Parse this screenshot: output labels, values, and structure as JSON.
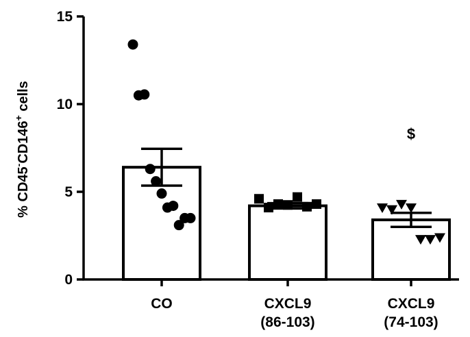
{
  "chart_data": {
    "type": "bar",
    "ylabel": {
      "prefix": "% CD45",
      "sup1": "-",
      "mid": "CD146",
      "sup2": "+",
      "suffix": " cells"
    },
    "ylim": [
      0,
      15
    ],
    "yticks": [
      0,
      5,
      10,
      15
    ],
    "grid": false,
    "error_bars": "mean ± SEM",
    "categories": [
      {
        "lines": [
          "CO"
        ]
      },
      {
        "lines": [
          "CXCL9",
          "(86-103)"
        ]
      },
      {
        "lines": [
          "CXCL9",
          "(74-103)"
        ]
      }
    ],
    "series": [
      {
        "marker": "circle",
        "mean": 6.4,
        "sem": 1.05,
        "points": [
          13.4,
          10.5,
          10.55,
          6.3,
          5.6,
          4.9,
          4.1,
          4.2,
          3.1,
          3.5,
          3.5
        ]
      },
      {
        "marker": "square",
        "mean": 4.2,
        "sem": 0.15,
        "points": [
          4.6,
          4.1,
          4.3,
          4.25,
          4.7,
          4.15,
          4.3
        ]
      },
      {
        "marker": "triangle-down",
        "mean": 3.4,
        "sem": 0.4,
        "points": [
          4.1,
          4.0,
          4.3,
          4.1,
          2.3,
          2.3,
          2.4
        ]
      }
    ],
    "annotations": [
      {
        "category_index": 2,
        "text": "$",
        "y": 8.0
      }
    ]
  }
}
